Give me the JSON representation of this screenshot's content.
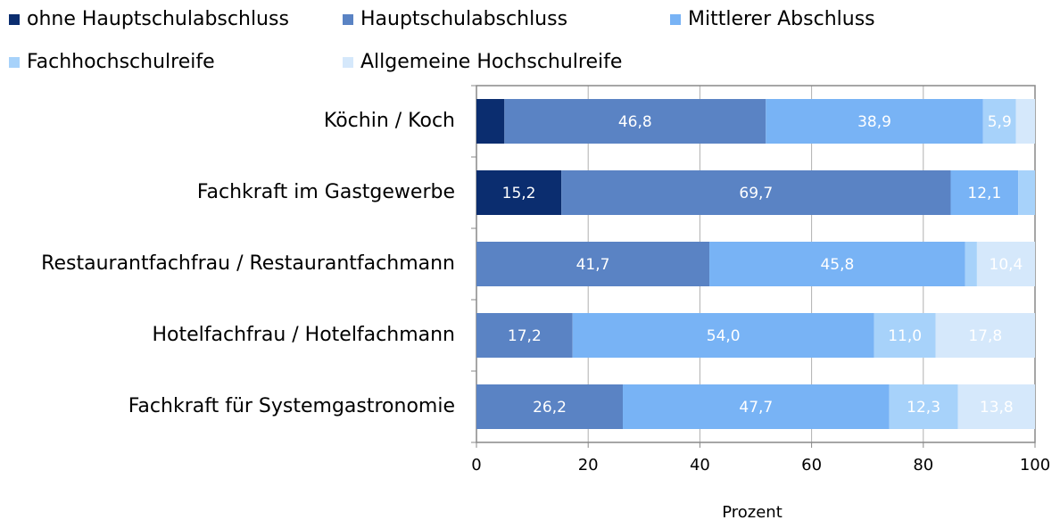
{
  "chart_data": {
    "type": "bar",
    "orientation": "horizontal",
    "stacked": true,
    "categories": [
      "Köchin / Koch",
      "Fachkraft im Gastgewerbe",
      "Restaurantfachfrau / Restaurantfachmann",
      "Hotelfachfrau / Hotelfachmann",
      "Fachkraft für Systemgastronomie"
    ],
    "series": [
      {
        "name": "ohne Hauptschulabschluss",
        "color": "#0b2d6f",
        "values": [
          5.0,
          15.2,
          null,
          null,
          null
        ],
        "value_labels": [
          null,
          "15,2",
          null,
          null,
          null
        ]
      },
      {
        "name": "Hauptschulabschluss",
        "color": "#5a83c4",
        "values": [
          46.8,
          69.7,
          41.7,
          17.2,
          26.2
        ],
        "value_labels": [
          "46,8",
          "69,7",
          "41,7",
          "17,2",
          "26,2"
        ]
      },
      {
        "name": "Mittlerer Abschluss",
        "color": "#78b3f5",
        "values": [
          38.9,
          12.1,
          45.8,
          54.0,
          47.7
        ],
        "value_labels": [
          "38,9",
          "12,1",
          "45,8",
          "54,0",
          "47,7"
        ]
      },
      {
        "name": "Fachhochschulreife",
        "color": "#a7d2fa",
        "values": [
          5.9,
          3.0,
          2.1,
          11.0,
          12.3
        ],
        "value_labels": [
          "5,9",
          null,
          null,
          "11,0",
          "12,3"
        ]
      },
      {
        "name": "Allgemeine Hochschulreife",
        "color": "#d5e8fb",
        "values": [
          3.4,
          null,
          10.4,
          17.8,
          13.8
        ],
        "value_labels": [
          null,
          null,
          "10,4",
          "17,8",
          "13,8"
        ]
      }
    ],
    "xlabel": "Prozent",
    "xlim": [
      0,
      100
    ],
    "xticks": [
      0,
      20,
      40,
      60,
      80,
      100
    ],
    "grid": true
  }
}
